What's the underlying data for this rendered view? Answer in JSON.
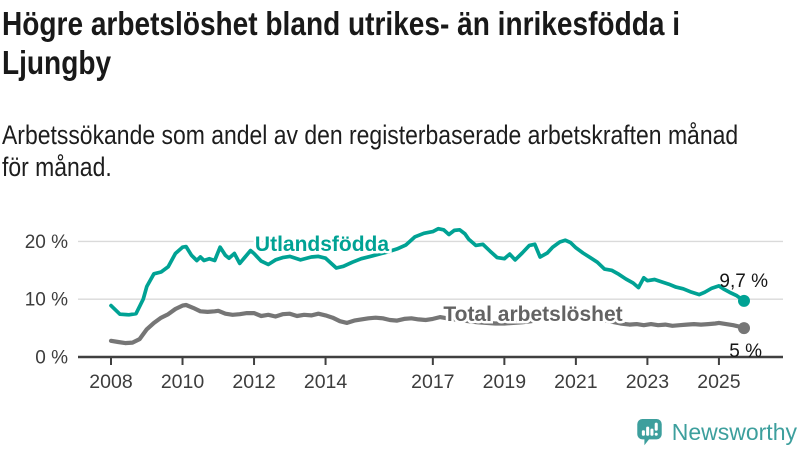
{
  "header": {
    "title_lines": [
      "Högre arbetslöshet bland utrikes- än inrikesfödda i",
      "Ljungby"
    ],
    "subtitle_lines": [
      "Arbetssökande som andel av den registerbaserade arbetskraften månad",
      "för månad."
    ]
  },
  "chart_data": {
    "type": "line",
    "title": "Högre arbetslöshet bland utrikes- än inrikesfödda i Ljungby",
    "subtitle": "Arbetssökande som andel av den registerbaserade arbetskraften månad för månad.",
    "grid": "horizontal",
    "legend_position": "inline-labels-on-lines",
    "x_axis": {
      "ticks": [
        2008,
        2010,
        2012,
        2014,
        2017,
        2019,
        2021,
        2023,
        2025
      ],
      "range": [
        2007.1,
        2026.8
      ]
    },
    "y_axis": {
      "unit": "%",
      "tick_values": [
        0,
        10,
        20
      ],
      "tick_labels": [
        "0 %",
        "10 %",
        "20 %"
      ],
      "range": [
        0,
        24
      ]
    },
    "series": [
      {
        "name": "Utlandsfödda",
        "color": "#00a294",
        "end_label": "9,7 %",
        "end_value": 9.7,
        "points": [
          [
            2008.0,
            8.9
          ],
          [
            2008.25,
            7.4
          ],
          [
            2008.5,
            7.3
          ],
          [
            2008.7,
            7.5
          ],
          [
            2008.9,
            10.0
          ],
          [
            2009.0,
            12.2
          ],
          [
            2009.2,
            14.4
          ],
          [
            2009.4,
            14.7
          ],
          [
            2009.6,
            15.6
          ],
          [
            2009.8,
            17.9
          ],
          [
            2010.0,
            19.0
          ],
          [
            2010.1,
            19.1
          ],
          [
            2010.25,
            17.6
          ],
          [
            2010.4,
            16.7
          ],
          [
            2010.5,
            17.3
          ],
          [
            2010.6,
            16.7
          ],
          [
            2010.75,
            17.0
          ],
          [
            2010.9,
            16.7
          ],
          [
            2011.05,
            19.0
          ],
          [
            2011.2,
            17.6
          ],
          [
            2011.3,
            17.1
          ],
          [
            2011.45,
            17.9
          ],
          [
            2011.6,
            16.2
          ],
          [
            2011.75,
            17.3
          ],
          [
            2011.9,
            18.4
          ],
          [
            2012.0,
            17.9
          ],
          [
            2012.2,
            16.6
          ],
          [
            2012.4,
            16.0
          ],
          [
            2012.6,
            16.8
          ],
          [
            2012.8,
            17.2
          ],
          [
            2013.0,
            17.4
          ],
          [
            2013.3,
            16.8
          ],
          [
            2013.6,
            17.3
          ],
          [
            2013.8,
            17.4
          ],
          [
            2014.0,
            17.1
          ],
          [
            2014.3,
            15.4
          ],
          [
            2014.5,
            15.7
          ],
          [
            2014.75,
            16.4
          ],
          [
            2015.0,
            17.0
          ],
          [
            2015.25,
            17.4
          ],
          [
            2015.5,
            17.8
          ],
          [
            2015.75,
            18.2
          ],
          [
            2016.0,
            18.7
          ],
          [
            2016.25,
            19.4
          ],
          [
            2016.5,
            20.8
          ],
          [
            2016.75,
            21.4
          ],
          [
            2017.0,
            21.7
          ],
          [
            2017.15,
            22.2
          ],
          [
            2017.3,
            22.0
          ],
          [
            2017.45,
            21.2
          ],
          [
            2017.6,
            21.9
          ],
          [
            2017.75,
            22.0
          ],
          [
            2017.9,
            21.3
          ],
          [
            2018.0,
            20.4
          ],
          [
            2018.2,
            19.3
          ],
          [
            2018.4,
            19.5
          ],
          [
            2018.6,
            18.3
          ],
          [
            2018.8,
            17.2
          ],
          [
            2019.0,
            17.0
          ],
          [
            2019.15,
            17.8
          ],
          [
            2019.3,
            16.8
          ],
          [
            2019.5,
            18.0
          ],
          [
            2019.7,
            19.3
          ],
          [
            2019.85,
            19.5
          ],
          [
            2020.0,
            17.3
          ],
          [
            2020.2,
            18.0
          ],
          [
            2020.35,
            19.0
          ],
          [
            2020.55,
            19.9
          ],
          [
            2020.7,
            20.2
          ],
          [
            2020.85,
            19.8
          ],
          [
            2021.0,
            18.9
          ],
          [
            2021.2,
            18.0
          ],
          [
            2021.4,
            17.2
          ],
          [
            2021.6,
            16.4
          ],
          [
            2021.8,
            15.2
          ],
          [
            2022.0,
            15.0
          ],
          [
            2022.2,
            14.3
          ],
          [
            2022.4,
            13.5
          ],
          [
            2022.6,
            12.8
          ],
          [
            2022.75,
            12.0
          ],
          [
            2022.9,
            13.7
          ],
          [
            2023.0,
            13.2
          ],
          [
            2023.2,
            13.4
          ],
          [
            2023.4,
            13.0
          ],
          [
            2023.6,
            12.6
          ],
          [
            2023.8,
            12.1
          ],
          [
            2024.0,
            11.8
          ],
          [
            2024.2,
            11.3
          ],
          [
            2024.45,
            10.8
          ],
          [
            2024.6,
            11.2
          ],
          [
            2024.8,
            11.9
          ],
          [
            2025.0,
            12.3
          ],
          [
            2025.15,
            11.7
          ],
          [
            2025.3,
            11.2
          ],
          [
            2025.5,
            10.6
          ],
          [
            2025.7,
            9.7
          ]
        ]
      },
      {
        "name": "Total arbetslöshet",
        "color": "#767676",
        "end_label": "5 %",
        "end_value": 5.0,
        "points": [
          [
            2008.0,
            2.8
          ],
          [
            2008.2,
            2.6
          ],
          [
            2008.4,
            2.4
          ],
          [
            2008.6,
            2.5
          ],
          [
            2008.8,
            3.1
          ],
          [
            2009.0,
            4.8
          ],
          [
            2009.2,
            5.9
          ],
          [
            2009.4,
            6.8
          ],
          [
            2009.6,
            7.4
          ],
          [
            2009.8,
            8.3
          ],
          [
            2010.0,
            8.9
          ],
          [
            2010.1,
            9.0
          ],
          [
            2010.3,
            8.5
          ],
          [
            2010.5,
            7.9
          ],
          [
            2010.7,
            7.8
          ],
          [
            2010.9,
            7.9
          ],
          [
            2011.0,
            8.0
          ],
          [
            2011.2,
            7.5
          ],
          [
            2011.4,
            7.3
          ],
          [
            2011.6,
            7.4
          ],
          [
            2011.8,
            7.6
          ],
          [
            2012.0,
            7.6
          ],
          [
            2012.2,
            7.1
          ],
          [
            2012.4,
            7.3
          ],
          [
            2012.6,
            7.0
          ],
          [
            2012.8,
            7.4
          ],
          [
            2013.0,
            7.5
          ],
          [
            2013.2,
            7.1
          ],
          [
            2013.4,
            7.3
          ],
          [
            2013.6,
            7.2
          ],
          [
            2013.8,
            7.5
          ],
          [
            2014.0,
            7.2
          ],
          [
            2014.2,
            6.8
          ],
          [
            2014.4,
            6.2
          ],
          [
            2014.6,
            5.9
          ],
          [
            2014.8,
            6.3
          ],
          [
            2015.0,
            6.5
          ],
          [
            2015.2,
            6.7
          ],
          [
            2015.4,
            6.8
          ],
          [
            2015.6,
            6.7
          ],
          [
            2015.8,
            6.4
          ],
          [
            2016.0,
            6.3
          ],
          [
            2016.2,
            6.6
          ],
          [
            2016.4,
            6.7
          ],
          [
            2016.6,
            6.5
          ],
          [
            2016.8,
            6.4
          ],
          [
            2017.0,
            6.6
          ],
          [
            2017.2,
            6.9
          ],
          [
            2017.5,
            6.6
          ],
          [
            2017.75,
            6.4
          ],
          [
            2018.0,
            6.2
          ],
          [
            2018.25,
            6.0
          ],
          [
            2018.5,
            5.9
          ],
          [
            2018.75,
            5.8
          ],
          [
            2019.0,
            5.8
          ],
          [
            2019.25,
            5.9
          ],
          [
            2019.5,
            6.0
          ],
          [
            2019.75,
            6.2
          ],
          [
            2020.0,
            6.5
          ],
          [
            2020.25,
            7.2
          ],
          [
            2020.5,
            7.5
          ],
          [
            2020.75,
            7.7
          ],
          [
            2021.0,
            7.5
          ],
          [
            2021.25,
            7.2
          ],
          [
            2021.5,
            6.8
          ],
          [
            2021.75,
            6.4
          ],
          [
            2022.0,
            6.1
          ],
          [
            2022.25,
            5.8
          ],
          [
            2022.5,
            5.6
          ],
          [
            2022.7,
            5.7
          ],
          [
            2022.9,
            5.5
          ],
          [
            2023.1,
            5.7
          ],
          [
            2023.3,
            5.5
          ],
          [
            2023.5,
            5.6
          ],
          [
            2023.7,
            5.4
          ],
          [
            2023.9,
            5.5
          ],
          [
            2024.1,
            5.6
          ],
          [
            2024.3,
            5.7
          ],
          [
            2024.5,
            5.6
          ],
          [
            2024.7,
            5.7
          ],
          [
            2024.9,
            5.8
          ],
          [
            2025.0,
            5.9
          ],
          [
            2025.2,
            5.7
          ],
          [
            2025.4,
            5.5
          ],
          [
            2025.55,
            5.3
          ],
          [
            2025.7,
            5.0
          ]
        ]
      }
    ]
  },
  "footer": {
    "brand": "Newsworthy",
    "logo_icon": "newsworthy-speech-bubble-bar-chart-icon",
    "brand_color": "#3d9f9d"
  }
}
